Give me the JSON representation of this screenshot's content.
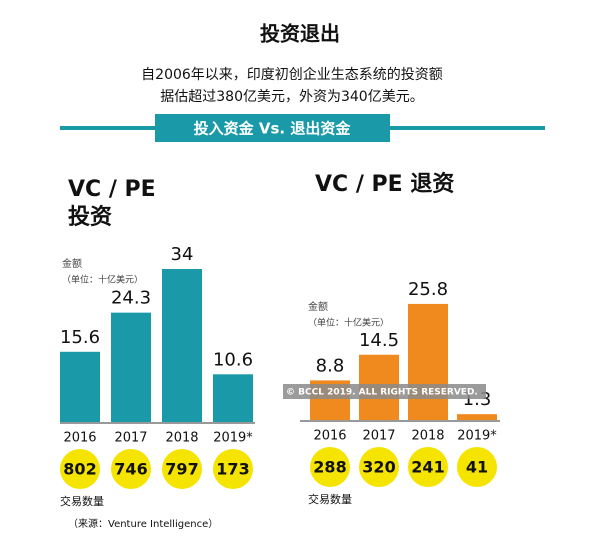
{
  "title": "投资退出",
  "subtitle": [
    "自2006年以来，印度初创企业生态系统的投资额",
    "据估超过380亿美元，外资为340亿美元。"
  ],
  "banner": "投入资金 Vs. 退出资金",
  "watermark": "© BCCL 2019. ALL RIGHTS RESERVED.",
  "source": "（来源：Venture Intelligence）",
  "chart_data": [
    {
      "type": "bar",
      "title": [
        "VC / PE",
        "投资"
      ],
      "y_label": [
        "金额",
        "（单位：十亿美元）"
      ],
      "categories": [
        "2016",
        "2017",
        "2018",
        "2019*"
      ],
      "values": [
        15.6,
        24.3,
        34,
        10.6
      ],
      "color": "#1a9aa8",
      "count_label": "交易数量",
      "counts": [
        802,
        746,
        797,
        173
      ],
      "count_color": "#f5e400"
    },
    {
      "type": "bar",
      "title": [
        "VC / PE 退资"
      ],
      "y_label": [
        "金额",
        "（单位：十亿美元）"
      ],
      "categories": [
        "2016",
        "2017",
        "2018",
        "2019*"
      ],
      "values": [
        8.8,
        14.5,
        25.8,
        1.3
      ],
      "color": "#f08a1e",
      "count_label": "交易数量",
      "counts": [
        288,
        320,
        241,
        41
      ],
      "count_color": "#f5e400"
    }
  ]
}
